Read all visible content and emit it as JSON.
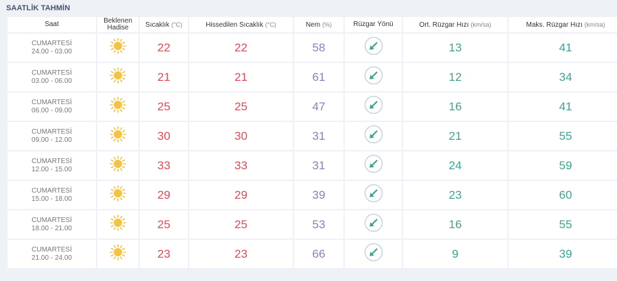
{
  "title": "SAATLİK TAHMİN",
  "headers": {
    "saat": "Saat",
    "hadise_1": "Beklenen",
    "hadise_2": "Hadise",
    "sicaklik": "Sıcaklık",
    "sicaklik_unit": "(°C)",
    "hissedilen": "Hissedilen Sıcaklık",
    "hissedilen_unit": "(°C)",
    "nem": "Nem",
    "nem_unit": "(%)",
    "ruzgar_yonu": "Rüzgar Yönü",
    "ort_ruzgar": "Ort. Rüzgar Hızı",
    "ort_ruzgar_unit": "(km/sa)",
    "maks_ruzgar": "Maks. Rüzgar Hızı",
    "maks_ruzgar_unit": "(km/sa)"
  },
  "colors": {
    "temperature": "#e04a5a",
    "humidity": "#8c7fb8",
    "wind": "#3aa58f",
    "sun": "#f5c242"
  },
  "icons": {
    "weather": "sun-icon",
    "wind_direction": "wind-arrow-southwest-icon"
  },
  "rows": [
    {
      "day": "CUMARTESİ",
      "time": "24.00 - 03.00",
      "temp": "22",
      "feels": "22",
      "humidity": "58",
      "avg_wind": "13",
      "max_wind": "41"
    },
    {
      "day": "CUMARTESİ",
      "time": "03.00 - 06.00",
      "temp": "21",
      "feels": "21",
      "humidity": "61",
      "avg_wind": "12",
      "max_wind": "34"
    },
    {
      "day": "CUMARTESİ",
      "time": "06.00 - 09.00",
      "temp": "25",
      "feels": "25",
      "humidity": "47",
      "avg_wind": "16",
      "max_wind": "41"
    },
    {
      "day": "CUMARTESİ",
      "time": "09.00 - 12.00",
      "temp": "30",
      "feels": "30",
      "humidity": "31",
      "avg_wind": "21",
      "max_wind": "55"
    },
    {
      "day": "CUMARTESİ",
      "time": "12.00 - 15.00",
      "temp": "33",
      "feels": "33",
      "humidity": "31",
      "avg_wind": "24",
      "max_wind": "59"
    },
    {
      "day": "CUMARTESİ",
      "time": "15.00 - 18.00",
      "temp": "29",
      "feels": "29",
      "humidity": "39",
      "avg_wind": "23",
      "max_wind": "60"
    },
    {
      "day": "CUMARTESİ",
      "time": "18.00 - 21.00",
      "temp": "25",
      "feels": "25",
      "humidity": "53",
      "avg_wind": "16",
      "max_wind": "55"
    },
    {
      "day": "CUMARTESİ",
      "time": "21.00 - 24.00",
      "temp": "23",
      "feels": "23",
      "humidity": "66",
      "avg_wind": "9",
      "max_wind": "39"
    }
  ]
}
